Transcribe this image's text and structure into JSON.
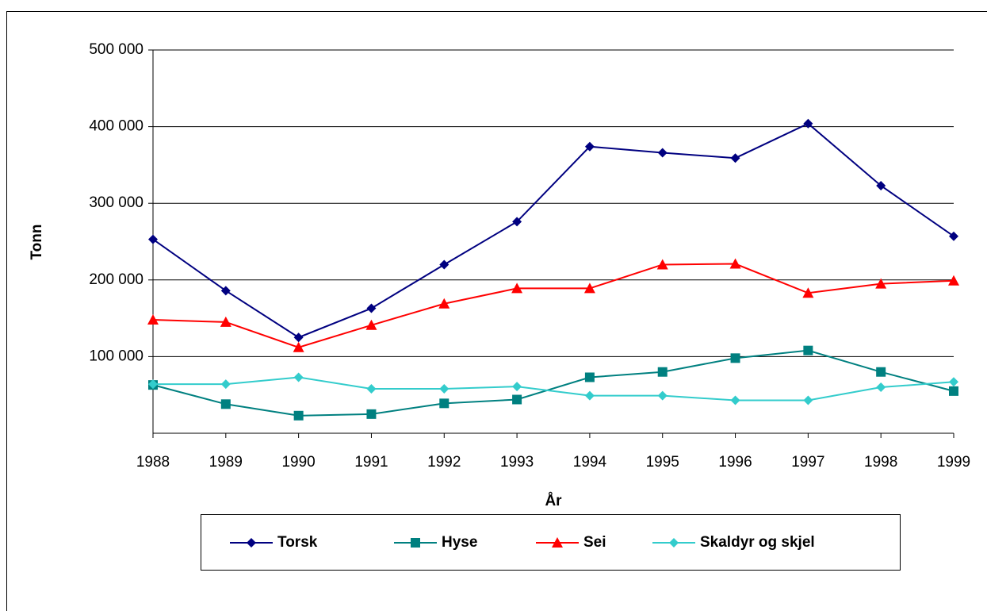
{
  "chart_data": {
    "type": "line",
    "x_label": "År",
    "y_label": "Tonn",
    "x": [
      1988,
      1989,
      1990,
      1991,
      1992,
      1993,
      1994,
      1995,
      1996,
      1997,
      1998,
      1999
    ],
    "xlim": [
      1988,
      1999
    ],
    "ylim": [
      0,
      500000
    ],
    "yticks": [
      {
        "value": 100000,
        "label": "100 000"
      },
      {
        "value": 200000,
        "label": "200 000"
      },
      {
        "value": 300000,
        "label": "300 000"
      },
      {
        "value": 400000,
        "label": "400 000"
      },
      {
        "value": 500000,
        "label": "500 000"
      }
    ],
    "grid": true,
    "legend": "bottom",
    "series": [
      {
        "name": "Torsk",
        "color": "#000080",
        "marker": "diamond",
        "values": [
          253000,
          186000,
          125000,
          163000,
          220000,
          276000,
          374000,
          366000,
          359000,
          404000,
          323000,
          257000
        ]
      },
      {
        "name": "Hyse",
        "color": "#008080",
        "marker": "square",
        "values": [
          63000,
          38000,
          23000,
          25000,
          39000,
          44000,
          73000,
          80000,
          98000,
          108000,
          80000,
          55000
        ]
      },
      {
        "name": "Sei",
        "color": "#ff0000",
        "marker": "triangle",
        "values": [
          148000,
          145000,
          112000,
          141000,
          169000,
          189000,
          189000,
          220000,
          221000,
          183000,
          195000,
          199000
        ]
      },
      {
        "name": "Skaldyr og skjel",
        "color": "#33cccc",
        "marker": "diamond",
        "values": [
          64000,
          64000,
          73000,
          58000,
          58000,
          61000,
          49000,
          49000,
          43000,
          43000,
          60000,
          67000
        ]
      }
    ]
  }
}
